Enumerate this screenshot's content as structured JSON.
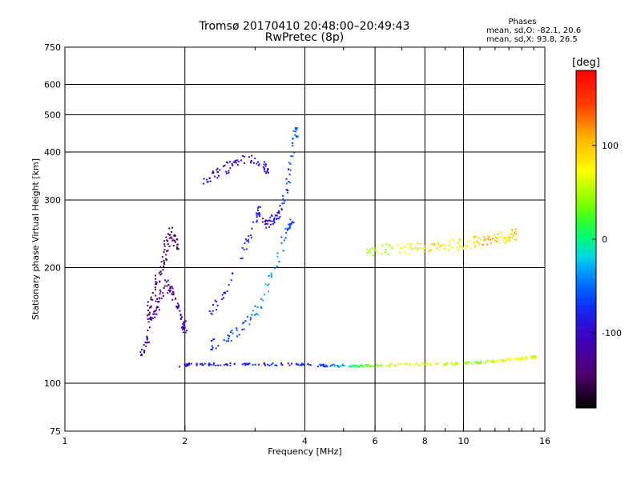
{
  "chart_data": {
    "type": "scatter",
    "title": "Tromsø 20170410 20:48:00–20:49:43",
    "subtitle": "RwPretec (8p)",
    "xlabel": "Frequency [MHz]",
    "ylabel": "Stationary phase Virtual Height [km]",
    "x_scale": "log",
    "y_scale": "log",
    "xlim": [
      1,
      16
    ],
    "ylim": [
      75,
      750
    ],
    "xticks": [
      1,
      2,
      4,
      6,
      8,
      10,
      16
    ],
    "xtick_labels": [
      "1",
      "2",
      "4",
      "6",
      "8",
      "10",
      "16"
    ],
    "xgrid": [
      2,
      4,
      6,
      8,
      10
    ],
    "xminor": [
      3,
      5,
      7,
      9,
      11,
      12,
      13,
      14,
      15
    ],
    "yticks": [
      75,
      100,
      200,
      300,
      400,
      500,
      600,
      750
    ],
    "ytick_labels": [
      "75",
      "100",
      "200",
      "300",
      "400",
      "500",
      "600",
      "750"
    ],
    "ygrid": [
      100,
      200,
      300,
      400,
      500,
      600
    ],
    "grid": true,
    "stats": {
      "heading": "Phases",
      "o_mode": "mean, sd,O:  -82.1, 20.6",
      "x_mode": "mean, sd,X:  93.8, 26.5"
    },
    "colorbar": {
      "label": "[deg]",
      "min": -180,
      "max": 180,
      "ticks": [
        100,
        0,
        -100
      ],
      "tick_labels": [
        "100",
        "0",
        "-100"
      ],
      "colormap": "rainbow (black-purple-blue-cyan-green-yellow-red)"
    },
    "traces": [
      {
        "name": "",
        "x": [
          1.95,
          2.05,
          2.3,
          2.6,
          3.0,
          3.5,
          4.0,
          4.5,
          5.0,
          5.5,
          6.0,
          7.0,
          8.0,
          9.0,
          10.0,
          11.0,
          12.0,
          13.0,
          14.0,
          15.0
        ],
        "y": [
          110,
          112,
          112,
          112,
          112,
          112,
          112,
          111,
          111,
          111,
          111,
          112,
          112,
          112,
          113,
          113,
          114,
          115,
          116,
          117
        ],
        "phase": [
          -100,
          -90,
          -80,
          -80,
          -78,
          -75,
          -70,
          -60,
          -30,
          20,
          40,
          60,
          70,
          60,
          50,
          40,
          60,
          80,
          70,
          60
        ]
      },
      {
        "name": "",
        "x": [
          1.55,
          1.6,
          1.62,
          1.65,
          1.7,
          1.75,
          1.8,
          1.85,
          1.9,
          1.95,
          2.0
        ],
        "y": [
          118,
          125,
          135,
          150,
          160,
          170,
          180,
          175,
          165,
          150,
          140
        ],
        "phase": [
          -110,
          -120,
          -115,
          -130,
          -125,
          -140,
          -135,
          -125,
          -120,
          -110,
          -115
        ]
      },
      {
        "name": "",
        "x": [
          1.6,
          1.65,
          1.7,
          1.75,
          1.78,
          1.8,
          1.85,
          1.9
        ],
        "y": [
          150,
          165,
          185,
          200,
          215,
          230,
          250,
          230
        ],
        "phase": [
          -140,
          -150,
          -145,
          -150,
          -148,
          -152,
          -145,
          -150
        ]
      },
      {
        "name": "",
        "x": [
          2.3,
          2.5,
          2.7,
          2.9,
          3.1,
          3.3,
          3.5,
          3.7
        ],
        "y": [
          125,
          130,
          135,
          145,
          160,
          190,
          230,
          260
        ],
        "phase": [
          -80,
          -70,
          -60,
          -50,
          -40,
          -30,
          -50,
          -60
        ]
      },
      {
        "name": "",
        "x": [
          2.3,
          2.5,
          2.7,
          2.9,
          3.05
        ],
        "y": [
          150,
          170,
          200,
          240,
          280
        ],
        "phase": [
          -90,
          -85,
          -80,
          -75,
          -85
        ]
      },
      {
        "name": "",
        "x": [
          2.2,
          2.35,
          2.5,
          2.65,
          2.8,
          3.0,
          3.2
        ],
        "y": [
          330,
          345,
          360,
          370,
          380,
          380,
          360
        ],
        "phase": [
          -110,
          -105,
          -100,
          -100,
          -95,
          -95,
          -100
        ]
      },
      {
        "name": "",
        "x": [
          3.1,
          3.2,
          3.3,
          3.4,
          3.5,
          3.6,
          3.7,
          3.8
        ],
        "y": [
          265,
          260,
          265,
          270,
          285,
          320,
          380,
          450
        ],
        "phase": [
          -100,
          -95,
          -90,
          -85,
          -80,
          -70,
          -60,
          -50
        ]
      },
      {
        "name": "",
        "x": [
          5.6,
          6.2,
          6.8,
          7.4,
          8.0,
          8.6,
          9.2,
          9.8,
          10.4,
          11.0,
          11.6,
          12.2,
          12.8,
          13.4
        ],
        "y": [
          222,
          222,
          223,
          224,
          225,
          226,
          228,
          230,
          232,
          234,
          236,
          238,
          240,
          244
        ],
        "phase": [
          40,
          50,
          60,
          80,
          90,
          100,
          70,
          60,
          80,
          100,
          120,
          90,
          80,
          100
        ]
      }
    ]
  }
}
